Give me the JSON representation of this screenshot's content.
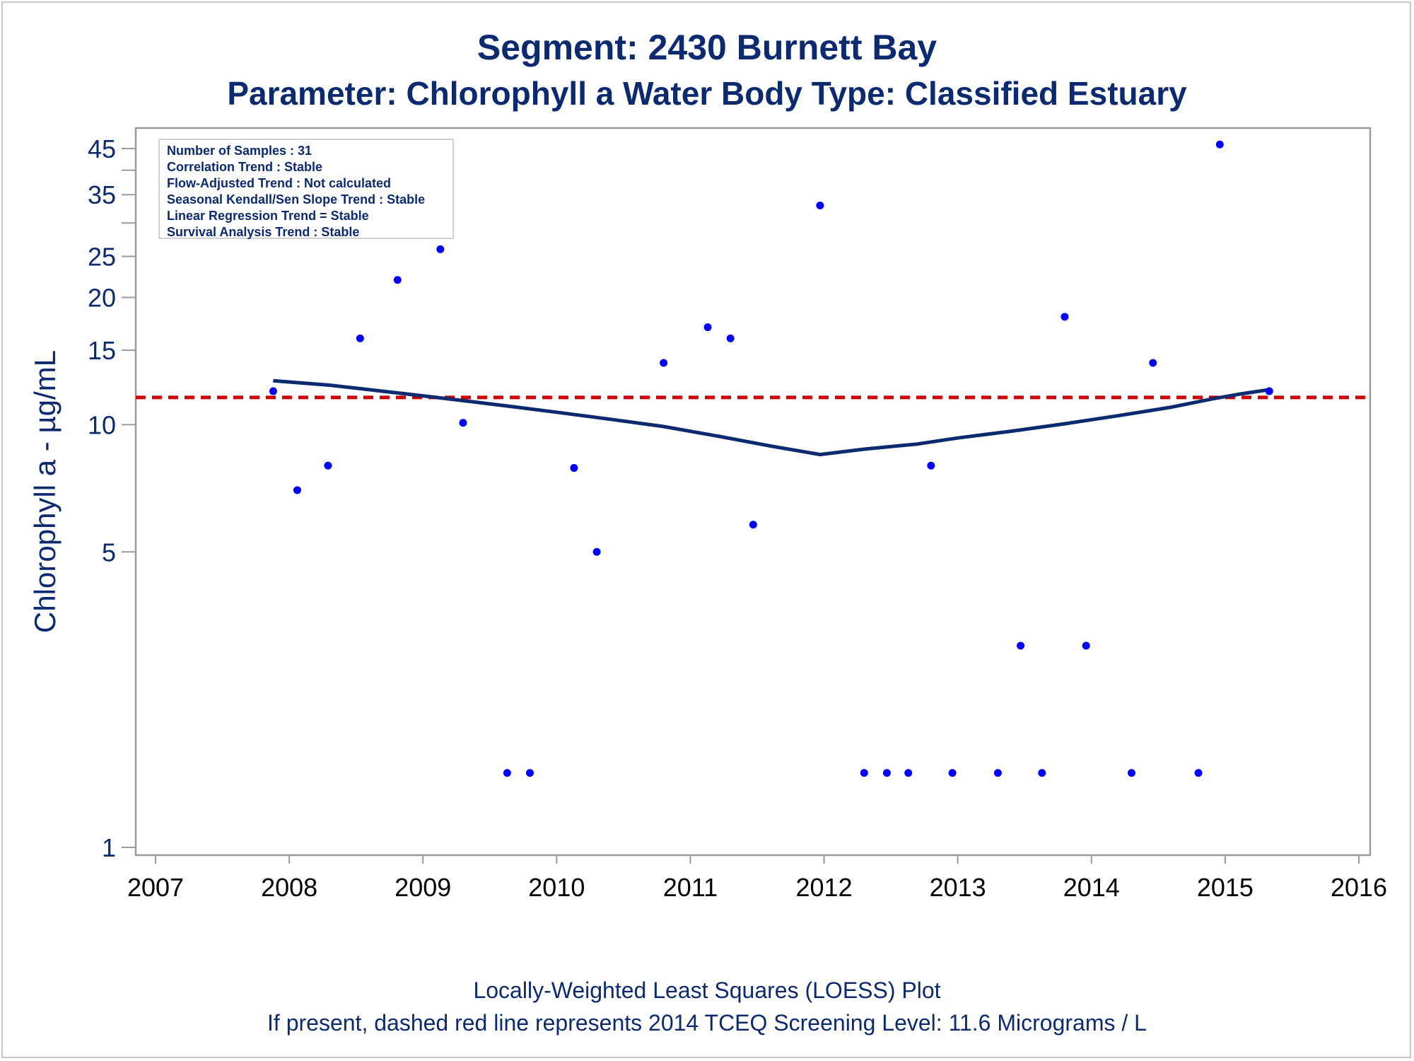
{
  "page": {
    "title": "Segment: 2430  Burnett Bay",
    "subtitle": "Parameter: Chlorophyll a   Water Body Type: Classified Estuary",
    "footnote1": "Locally-Weighted Least Squares (LOESS) Plot",
    "footnote2": "If present, dashed red line represents 2014 TCEQ Screening Level: 11.6 Micrograms / L"
  },
  "colors": {
    "text": "#0b2a6f",
    "points": "#0000ff",
    "loess": "#0b2a6f",
    "screening": "#cc0000",
    "axis": "#9a9a9a"
  },
  "stats_box": {
    "lines": [
      "Number of Samples : 31",
      "Correlation Trend : Stable",
      "Flow-Adjusted Trend : Not calculated",
      "Seasonal Kendall/Sen Slope Trend : Stable",
      "Linear Regression Trend = Stable",
      "Survival Analysis Trend : Stable"
    ]
  },
  "chart_data": {
    "type": "scatter",
    "title": "Segment: 2430  Burnett Bay",
    "subtitle": "Parameter: Chlorophyll a   Water Body Type: Classified Estuary",
    "xlabel": "",
    "ylabel": "Chlorophyll a -  µg/mL",
    "x_scale": "linear",
    "y_scale": "log",
    "xlim": [
      2007,
      2016
    ],
    "ylim": [
      0.95,
      50
    ],
    "x_ticks": [
      2007,
      2008,
      2009,
      2010,
      2011,
      2012,
      2013,
      2014,
      2015,
      2016
    ],
    "y_ticks": [
      1,
      5,
      10,
      15,
      20,
      25,
      35,
      45
    ],
    "y_minor_ticks": [
      30,
      40
    ],
    "grid": false,
    "screening_level": 11.6,
    "series": [
      {
        "type": "scatter",
        "x": [
          2007.88,
          2008.06,
          2008.29,
          2008.53,
          2008.81,
          2009.13,
          2009.3,
          2009.63,
          2009.8,
          2010.13,
          2010.3,
          2010.8,
          2011.13,
          2011.3,
          2011.47,
          2011.97,
          2012.3,
          2012.47,
          2012.63,
          2012.8,
          2012.96,
          2013.3,
          2013.47,
          2013.63,
          2013.8,
          2013.96,
          2014.3,
          2014.46,
          2014.8,
          2014.96,
          2015.33
        ],
        "y": [
          12,
          7,
          8,
          16,
          22,
          26,
          10.1,
          1.5,
          1.5,
          7.9,
          5,
          14,
          17,
          16,
          5.8,
          33,
          1.5,
          1.5,
          1.5,
          8,
          1.5,
          1.5,
          3,
          1.5,
          18,
          3,
          1.5,
          14,
          1.5,
          46,
          12
        ]
      },
      {
        "type": "line",
        "x": [
          2007.88,
          2008.3,
          2008.7,
          2009.0,
          2009.3,
          2009.7,
          2010.0,
          2010.4,
          2010.8,
          2011.2,
          2011.6,
          2011.97,
          2012.3,
          2012.7,
          2013.0,
          2013.4,
          2013.8,
          2014.2,
          2014.6,
          2014.9,
          2015.1,
          2015.33
        ],
        "y": [
          12.7,
          12.4,
          12.0,
          11.7,
          11.4,
          11.0,
          10.7,
          10.3,
          9.9,
          9.4,
          8.9,
          8.5,
          8.75,
          9.0,
          9.3,
          9.65,
          10.05,
          10.5,
          11.0,
          11.5,
          11.8,
          12.1
        ]
      }
    ]
  }
}
